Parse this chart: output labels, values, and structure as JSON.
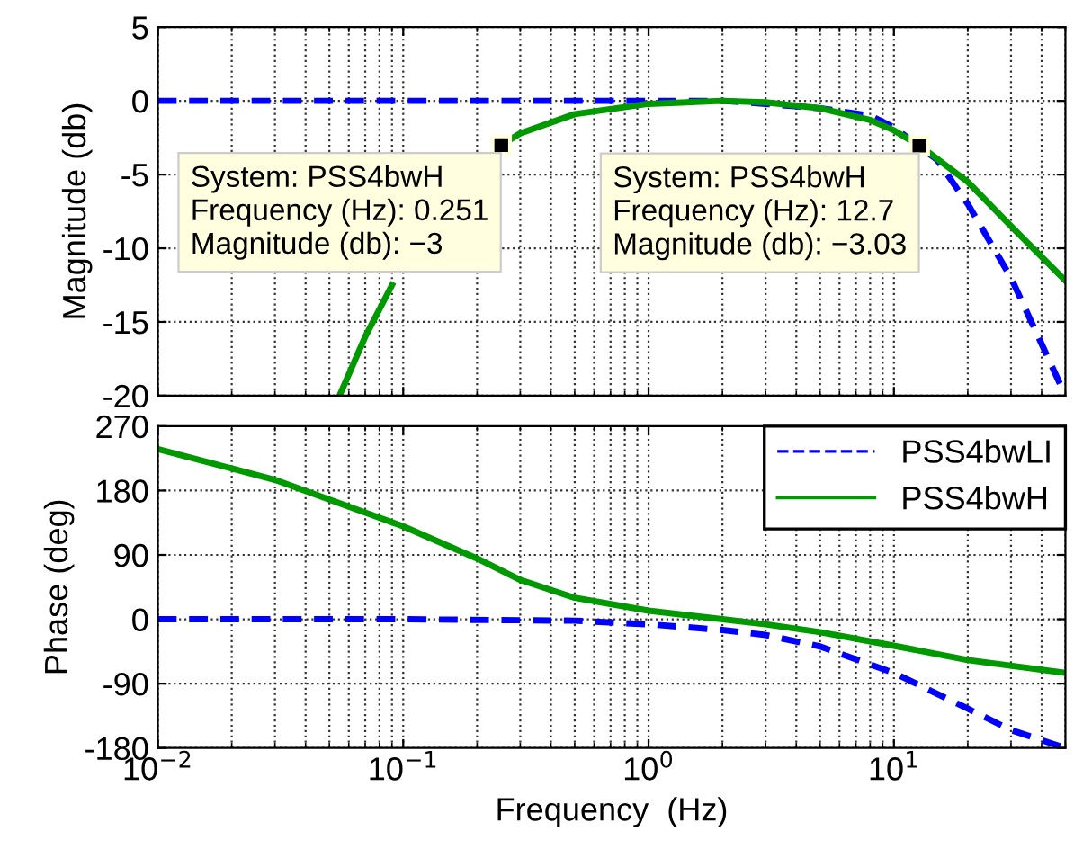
{
  "chart_data": [
    {
      "type": "line",
      "ylabel": "Magnitude (db)",
      "log": "x",
      "xlim": [
        0.01,
        50
      ],
      "xticks": [
        {
          "value": 0.01,
          "label": null
        },
        {
          "value": 0.1,
          "label": null
        },
        {
          "value": 1,
          "label": null
        },
        {
          "value": 10,
          "label": null
        }
      ],
      "ylim": [
        -20,
        5
      ],
      "yticks": [
        -20,
        -15,
        -10,
        -5,
        0,
        5
      ],
      "grid": true,
      "tick_labels": "y",
      "series": [
        {
          "color": "#0000ff",
          "line_style": "dashed",
          "x": [
            0.01,
            0.1,
            1,
            2,
            3,
            5,
            8,
            10,
            15,
            20,
            30,
            40,
            50
          ],
          "values": [
            0,
            0,
            0,
            0,
            -0.2,
            -0.5,
            -1,
            -1.8,
            -4,
            -7,
            -12,
            -16.5,
            -20
          ]
        },
        {
          "color": "#009900",
          "line_style": "solid",
          "x": [
            0.055,
            0.07,
            0.09,
            0.1,
            0.15,
            0.2,
            0.251,
            0.3,
            0.5,
            1,
            2,
            3,
            5,
            8,
            10,
            12.7,
            20,
            30,
            50
          ],
          "values": [
            -20,
            -16,
            -12.5,
            null,
            null,
            null,
            -3,
            -2.2,
            -0.9,
            -0.2,
            0,
            -0.1,
            -0.5,
            -1.3,
            -2,
            -3.03,
            -5.5,
            -8.5,
            -12.2
          ]
        }
      ],
      "annotations": [
        {
          "text": "System: PSS4bwH\nFrequency (Hz): 0.251\nMagnitude (db): −3",
          "x": 0.251,
          "y": -3
        },
        {
          "text": "System: PSS4bwH\nFrequency (Hz): 12.7\nMagnitude (db): −3.03",
          "x": 12.7,
          "y": -3.03
        }
      ]
    },
    {
      "type": "line",
      "ylabel": "Phase (deg)",
      "xlabel": "Frequency  (Hz)",
      "log": "x",
      "xlim": [
        0.01,
        50
      ],
      "xticks": [
        {
          "value": 0.01,
          "label": "10$^{−2}$"
        },
        {
          "value": 0.1,
          "label": "10$^{−1}$"
        },
        {
          "value": 1,
          "label": "10$^{0}$"
        },
        {
          "value": 10,
          "label": "10$^{1}$"
        }
      ],
      "ylim": [
        -180,
        270
      ],
      "yticks": [
        -180,
        -90,
        0,
        90,
        180,
        270
      ],
      "grid": true,
      "legend": "top right",
      "series": [
        {
          "name": "PSS4bwLI",
          "color": "#0000ff",
          "line_style": "dashed",
          "x": [
            0.01,
            0.1,
            0.5,
            1,
            2,
            3,
            5,
            10,
            20,
            30,
            50
          ],
          "values": [
            0,
            0,
            -2,
            -7,
            -15,
            -22,
            -38,
            -75,
            -125,
            -155,
            -180
          ]
        },
        {
          "name": "PSS4bwH",
          "color": "#009900",
          "line_style": "solid",
          "x": [
            0.01,
            0.03,
            0.1,
            0.2,
            0.3,
            0.5,
            1,
            2,
            3,
            5,
            10,
            20,
            50
          ],
          "values": [
            238,
            195,
            130,
            85,
            55,
            30,
            12,
            0,
            -7,
            -18,
            -37,
            -57,
            -75
          ]
        }
      ]
    }
  ]
}
